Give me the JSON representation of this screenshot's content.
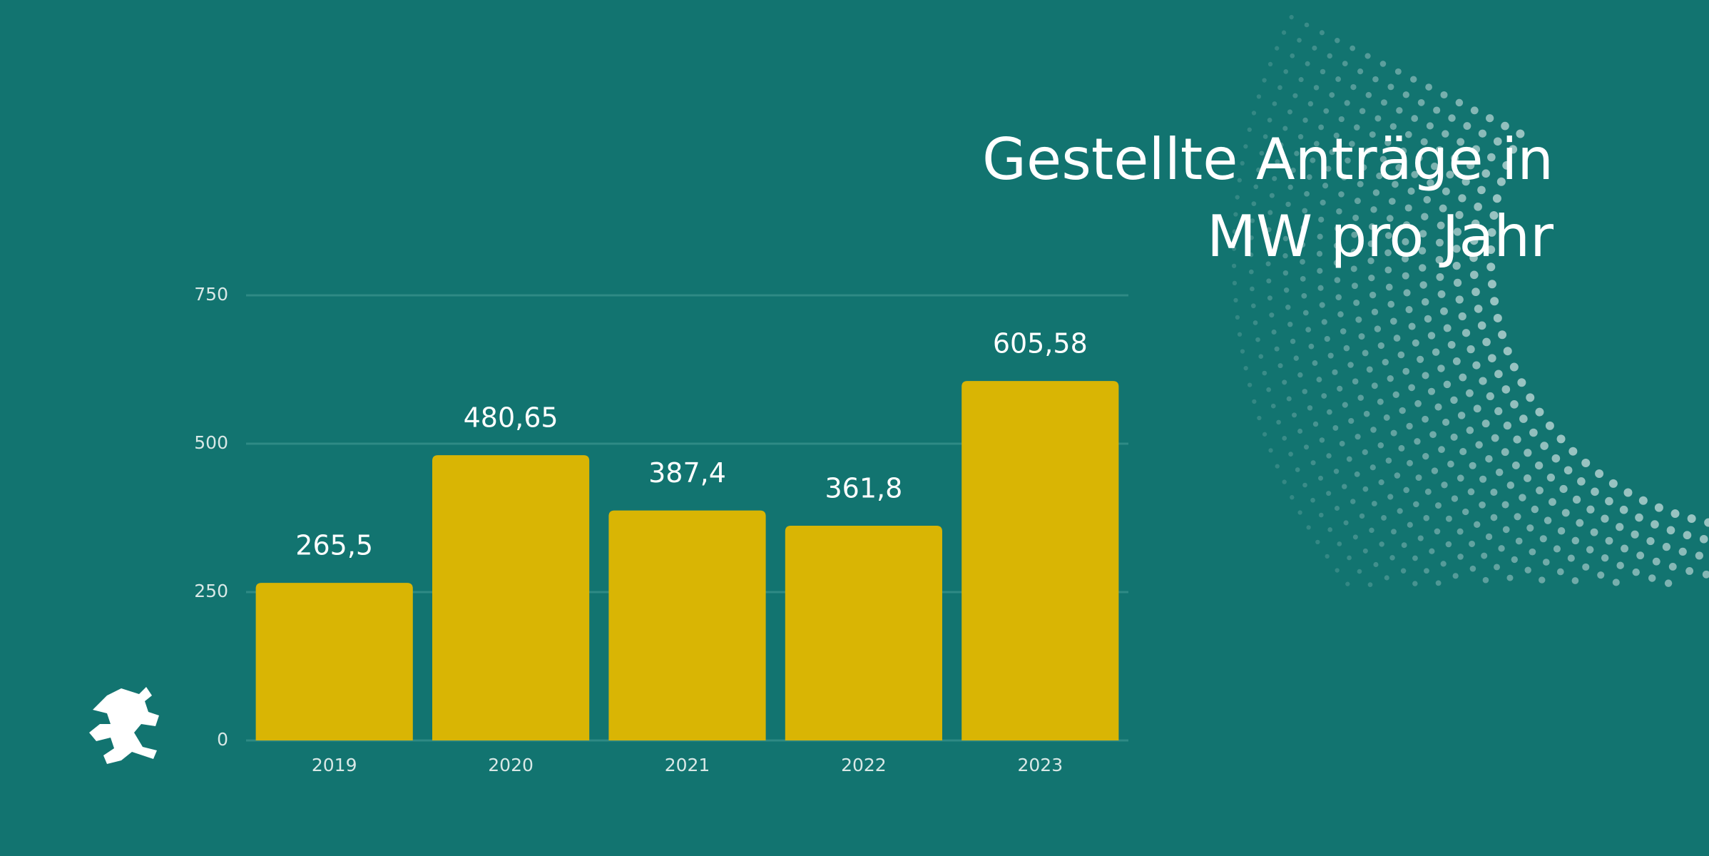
{
  "chart_data": {
    "type": "bar",
    "title": "Gestellte Anträge in MW pro Jahr",
    "categories": [
      "2019",
      "2020",
      "2021",
      "2022",
      "2023"
    ],
    "values": [
      265.5,
      480.65,
      387.4,
      361.8,
      605.58
    ],
    "value_labels": [
      "265,5",
      "480,65",
      "387,4",
      "361,8",
      "605,58"
    ],
    "color": "#d9b504",
    "ylim": [
      0,
      750
    ],
    "yticks": [
      0,
      250,
      500,
      750
    ],
    "grid": true
  }
}
